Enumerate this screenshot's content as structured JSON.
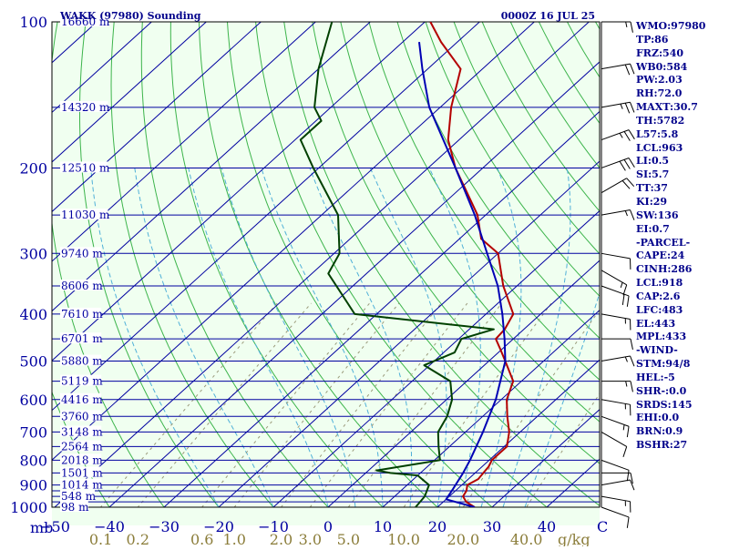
{
  "header": {
    "title": "WAKK (97980) Sounding",
    "datetime": "0000Z 16 JUL 25"
  },
  "colors": {
    "background": "#f0fff0",
    "isobar": "#0000a0",
    "isotherm": "#0000a0",
    "dry_adiabat": "#3cb44b",
    "moist_adiabat": "#4fb0d8",
    "mixing_ratio": "#9a9a7a",
    "temperature": "#b40000",
    "dewpoint": "#004000",
    "parcel": "#0000b4",
    "text": "#00008b",
    "axis_label": "#8b7d3a"
  },
  "chart_data": {
    "type": "line",
    "chart_kind": "skew-T log-P sounding",
    "axes": {
      "pressure_unit_label": "mb",
      "pressure_range": [
        1000,
        100
      ],
      "pressure_scale": "log",
      "temperature_range": [
        -50,
        50
      ],
      "temperature_unit_label": "C",
      "mixing_ratio_unit_label": "g/kg"
    },
    "pressure_ticks": [
      "100",
      "200",
      "300",
      "400",
      "500",
      "600",
      "700",
      "800",
      "900",
      "1000"
    ],
    "pressure_tick_values": [
      100,
      200,
      300,
      400,
      500,
      600,
      700,
      800,
      900,
      1000
    ],
    "temperature_ticks": [
      "−50",
      "−40",
      "−30",
      "−20",
      "−10",
      "0",
      "10",
      "20",
      "30",
      "40"
    ],
    "temperature_tick_values": [
      -50,
      -40,
      -30,
      -20,
      -10,
      0,
      10,
      20,
      30,
      40
    ],
    "mixing_ratio_ticks": [
      "0.1",
      "0.2",
      "0.6",
      "1.0",
      "2.0",
      "3.0",
      "5.0",
      "10.0",
      "20.0",
      "40.0"
    ],
    "mixing_ratio_values": [
      0.1,
      0.2,
      0.6,
      1.0,
      2.0,
      3.0,
      5.0,
      10.0,
      20.0,
      40.0
    ],
    "height_labels": [
      {
        "p": 100,
        "label": "16660 m"
      },
      {
        "p": 150,
        "label": "14320 m"
      },
      {
        "p": 200,
        "label": "12510 m"
      },
      {
        "p": 250,
        "label": "11030 m"
      },
      {
        "p": 300,
        "label": "9740 m"
      },
      {
        "p": 350,
        "label": "8606 m"
      },
      {
        "p": 400,
        "label": "7610 m"
      },
      {
        "p": 450,
        "label": "6701 m"
      },
      {
        "p": 500,
        "label": "5880 m"
      },
      {
        "p": 550,
        "label": "5119 m"
      },
      {
        "p": 600,
        "label": "4416 m"
      },
      {
        "p": 650,
        "label": "3760 m"
      },
      {
        "p": 700,
        "label": "3148 m"
      },
      {
        "p": 750,
        "label": "2564 m"
      },
      {
        "p": 800,
        "label": "2018 m"
      },
      {
        "p": 850,
        "label": "1501 m"
      },
      {
        "p": 900,
        "label": "1014 m"
      },
      {
        "p": 950,
        "label": "548 m"
      },
      {
        "p": 1000,
        "label": "98 m"
      }
    ],
    "series": [
      {
        "name": "temperature",
        "points": [
          [
            1000,
            26.8
          ],
          [
            975,
            24.2
          ],
          [
            950,
            22.5
          ],
          [
            925,
            22.0
          ],
          [
            900,
            21.0
          ],
          [
            875,
            21.8
          ],
          [
            850,
            21.5
          ],
          [
            825,
            21.2
          ],
          [
            800,
            20.5
          ],
          [
            750,
            20.5
          ],
          [
            700,
            18.0
          ],
          [
            650,
            14.5
          ],
          [
            600,
            11.0
          ],
          [
            550,
            8.5
          ],
          [
            500,
            3.0
          ],
          [
            475,
            0.0
          ],
          [
            450,
            -3.2
          ],
          [
            430,
            -3.5
          ],
          [
            400,
            -5.0
          ],
          [
            350,
            -12.5
          ],
          [
            300,
            -20.0
          ],
          [
            280,
            -26.0
          ],
          [
            250,
            -31.5
          ],
          [
            200,
            -45.0
          ],
          [
            175,
            -52.0
          ],
          [
            150,
            -58.0
          ],
          [
            125,
            -64.0
          ],
          [
            110,
            -73.0
          ],
          [
            100,
            -79.0
          ]
        ]
      },
      {
        "name": "dewpoint",
        "points": [
          [
            1000,
            16.0
          ],
          [
            950,
            15.5
          ],
          [
            900,
            14.0
          ],
          [
            860,
            10.0
          ],
          [
            850,
            4.5
          ],
          [
            840,
            1.5
          ],
          [
            800,
            11.0
          ],
          [
            750,
            8.0
          ],
          [
            700,
            5.0
          ],
          [
            650,
            3.5
          ],
          [
            600,
            1.0
          ],
          [
            550,
            -3.0
          ],
          [
            510,
            -11.0
          ],
          [
            480,
            -8.0
          ],
          [
            450,
            -9.5
          ],
          [
            430,
            -5.5
          ],
          [
            400,
            -34.0
          ],
          [
            330,
            -47.0
          ],
          [
            300,
            -49.0
          ],
          [
            250,
            -57.0
          ],
          [
            200,
            -71.0
          ],
          [
            175,
            -79.0
          ],
          [
            160,
            -79.0
          ],
          [
            150,
            -83.0
          ],
          [
            125,
            -90.0
          ],
          [
            100,
            -97.0
          ]
        ]
      },
      {
        "name": "parcel",
        "points": [
          [
            1000,
            26.8
          ],
          [
            963,
            20.0
          ],
          [
            918,
            19.2
          ],
          [
            850,
            17.8
          ],
          [
            800,
            16.5
          ],
          [
            700,
            13.2
          ],
          [
            600,
            9.0
          ],
          [
            500,
            3.0
          ],
          [
            450,
            -1.6
          ],
          [
            400,
            -7.0
          ],
          [
            350,
            -13.5
          ],
          [
            300,
            -22.0
          ],
          [
            250,
            -32.0
          ],
          [
            200,
            -45.0
          ],
          [
            150,
            -62.0
          ],
          [
            125,
            -71.0
          ],
          [
            110,
            -77.0
          ]
        ]
      }
    ]
  },
  "indices": [
    "WMO:97980",
    "TP:86",
    "FRZ:540",
    "WB0:584",
    "PW:2.03",
    "RH:72.0",
    "MAXT:30.7",
    "TH:5782",
    "L57:5.8",
    "LCL:963",
    "LI:0.5",
    "SI:5.7",
    "TT:37",
    "KI:29",
    "SW:136",
    "EI:0.7",
    "-PARCEL-",
    "CAPE:24",
    "CINH:286",
    "LCL:918",
    "CAP:2.6",
    "LFC:483",
    "EL:443",
    "MPL:433",
    "-WIND-",
    "STM:94/8",
    "HEL:-5",
    "SHR-:0.0",
    "SRDS:145",
    "EHI:0.0",
    "BRN:0.9",
    "BSHR:27"
  ],
  "wind_barbs": [
    {
      "p": 100,
      "dir": 90,
      "spd": 15
    },
    {
      "p": 125,
      "dir": 80,
      "spd": 20
    },
    {
      "p": 150,
      "dir": 80,
      "spd": 25
    },
    {
      "p": 175,
      "dir": 70,
      "spd": 25
    },
    {
      "p": 200,
      "dir": 70,
      "spd": 30
    },
    {
      "p": 225,
      "dir": 60,
      "spd": 20
    },
    {
      "p": 250,
      "dir": 80,
      "spd": 15
    },
    {
      "p": 300,
      "dir": 100,
      "spd": 10
    },
    {
      "p": 325,
      "dir": 120,
      "spd": 15
    },
    {
      "p": 350,
      "dir": 110,
      "spd": 20
    },
    {
      "p": 400,
      "dir": 100,
      "spd": 15
    },
    {
      "p": 450,
      "dir": 90,
      "spd": 10
    },
    {
      "p": 500,
      "dir": 80,
      "spd": 15
    },
    {
      "p": 550,
      "dir": 90,
      "spd": 15
    },
    {
      "p": 600,
      "dir": 100,
      "spd": 15
    },
    {
      "p": 650,
      "dir": 110,
      "spd": 15
    },
    {
      "p": 700,
      "dir": 120,
      "spd": 10
    },
    {
      "p": 800,
      "dir": 110,
      "spd": 10
    },
    {
      "p": 850,
      "dir": 90,
      "spd": 10
    },
    {
      "p": 900,
      "dir": 80,
      "spd": 10
    },
    {
      "p": 950,
      "dir": 100,
      "spd": 15
    },
    {
      "p": 1000,
      "dir": 110,
      "spd": 10
    }
  ]
}
